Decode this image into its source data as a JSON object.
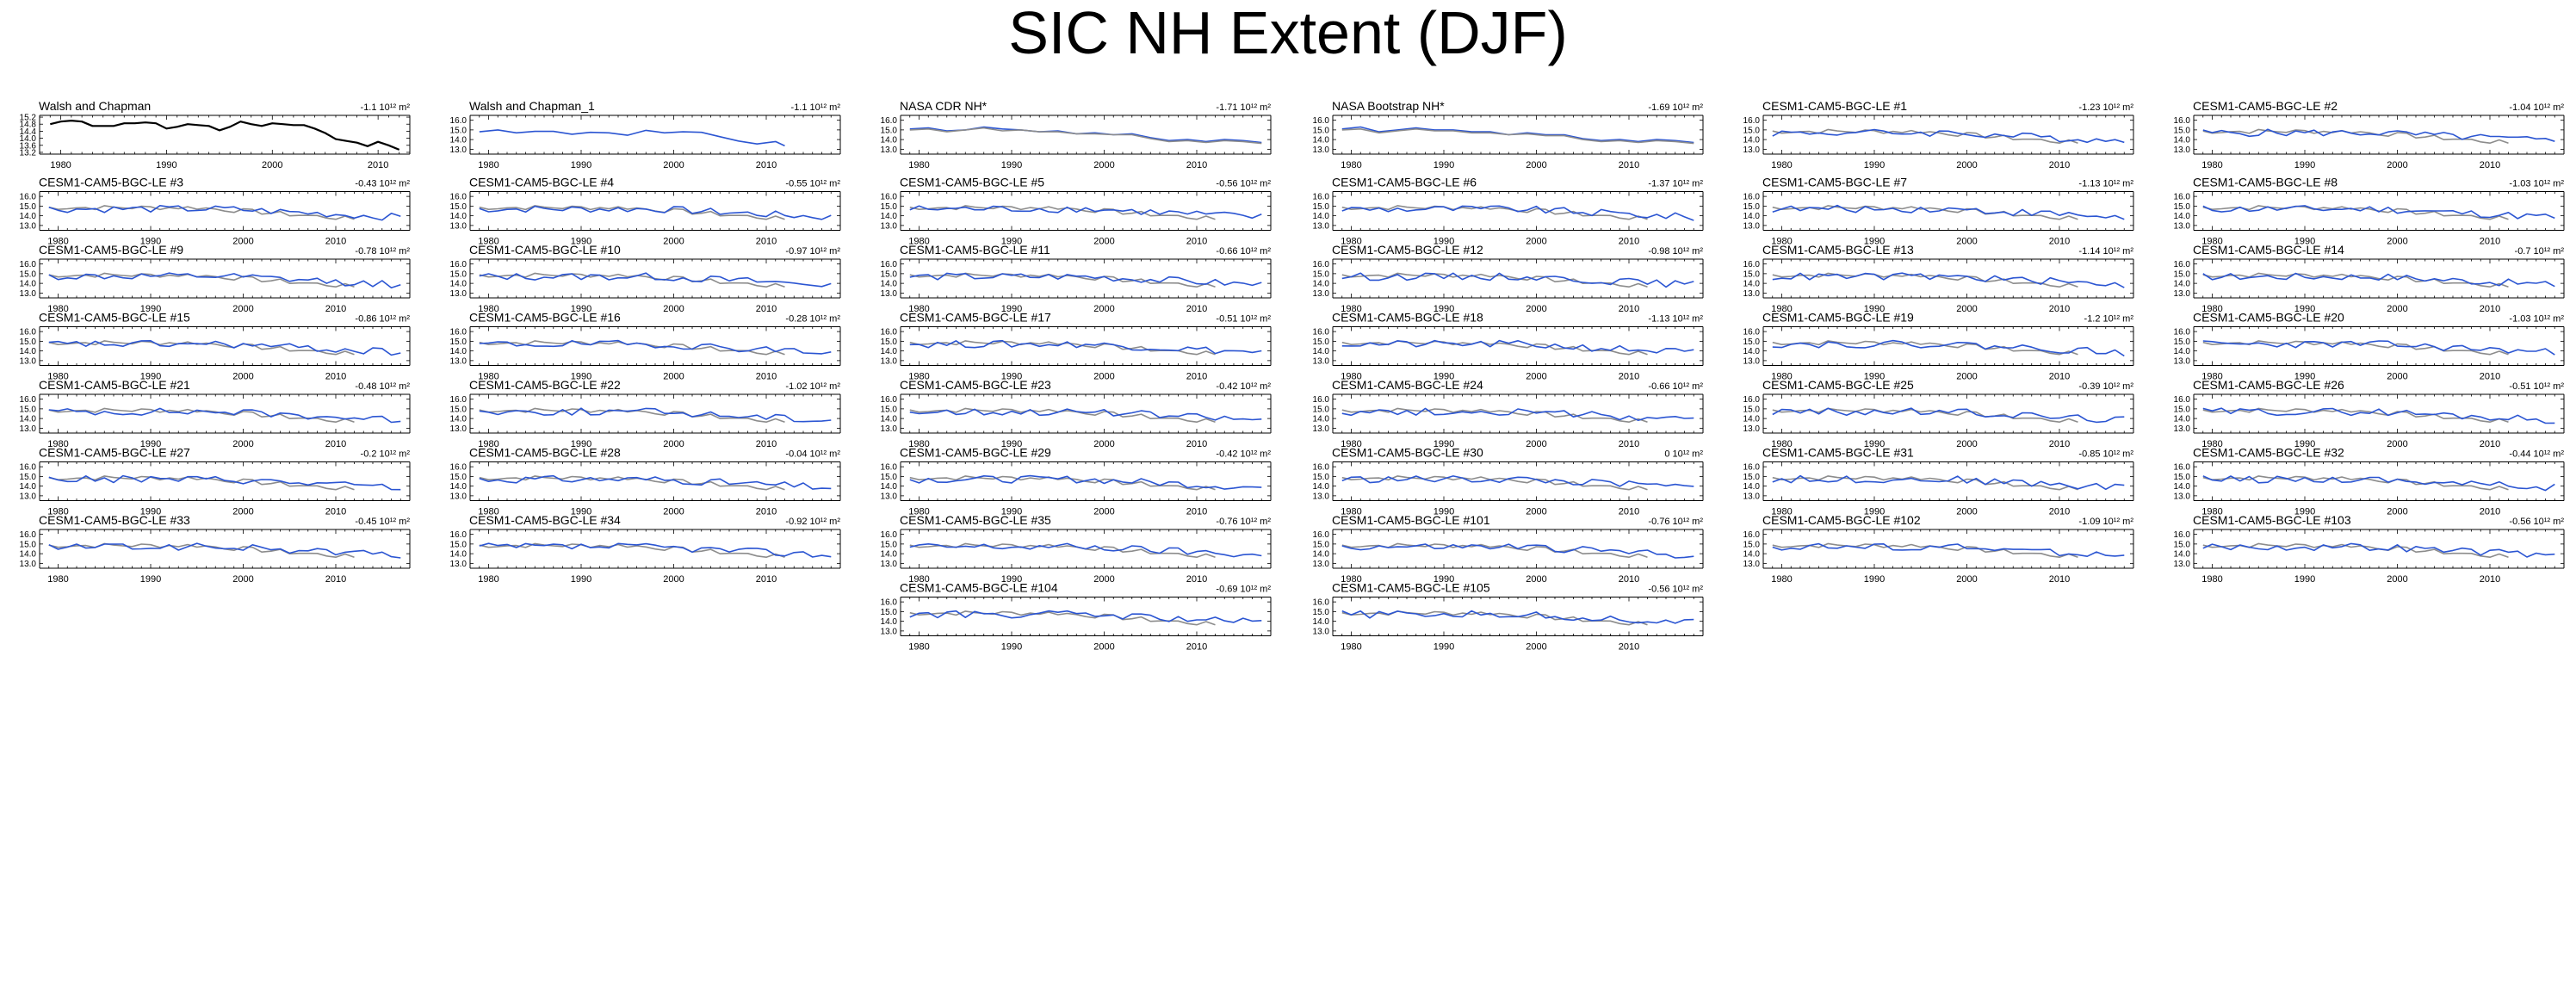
{
  "figure": {
    "title": "SIC NH Extent (DJF)",
    "x_ticks": [
      "1980",
      "1990",
      "2000",
      "2010"
    ],
    "y_ticks_obs": [
      "15.2",
      "14.8",
      "14.4",
      "14.0",
      "13.6",
      "13.2"
    ],
    "y_ticks_default": [
      "16.0",
      "15.0",
      "14.0",
      "13.0"
    ],
    "colors": {
      "model": "#2b55d2",
      "observed": "#8c8c8c",
      "obs_reference": "#000000",
      "axis": "#000000"
    }
  },
  "chart_data": [
    {
      "type": "line",
      "title": "Walsh and Chapman",
      "trend": "-1.1 10¹² m²",
      "xlim": [
        1978,
        2013
      ],
      "ylim": [
        13.1,
        15.3
      ],
      "yticks": [
        15.2,
        14.8,
        14.4,
        14.0,
        13.6,
        13.2
      ],
      "x": [
        1979,
        1980,
        1981,
        1982,
        1983,
        1984,
        1985,
        1986,
        1987,
        1988,
        1989,
        1990,
        1991,
        1992,
        1993,
        1994,
        1995,
        1996,
        1997,
        1998,
        1999,
        2000,
        2001,
        2002,
        2003,
        2004,
        2005,
        2006,
        2007,
        2008,
        2009,
        2010,
        2011,
        2012
      ],
      "series": [
        {
          "name": "Walsh and Chapman",
          "color": "#000000",
          "values": [
            14.8,
            14.95,
            15.0,
            14.95,
            14.7,
            14.7,
            14.7,
            14.85,
            14.85,
            14.9,
            14.85,
            14.55,
            14.65,
            14.8,
            14.75,
            14.7,
            14.45,
            14.65,
            14.95,
            14.8,
            14.7,
            14.85,
            14.8,
            14.75,
            14.75,
            14.55,
            14.3,
            13.95,
            13.85,
            13.75,
            13.55,
            13.8,
            13.6,
            13.35
          ]
        }
      ]
    },
    {
      "type": "line",
      "title": "Walsh and Chapman_1",
      "trend": "-1.1 10¹² m²",
      "xlim": [
        1978,
        2018
      ],
      "ylim": [
        12.5,
        16.5
      ],
      "yticks": [
        16,
        15,
        14,
        13
      ],
      "x": [
        1979,
        1981,
        1983,
        1985,
        1987,
        1989,
        1991,
        1993,
        1995,
        1997,
        1999,
        2001,
        2003,
        2005,
        2007,
        2009,
        2011,
        2012
      ],
      "series": [
        {
          "name": "Walsh and Chapman_1",
          "color": "#2b55d2",
          "values": [
            14.8,
            15.0,
            14.7,
            14.85,
            14.85,
            14.55,
            14.75,
            14.7,
            14.45,
            14.95,
            14.7,
            14.8,
            14.75,
            14.3,
            13.85,
            13.55,
            13.8,
            13.35
          ]
        }
      ]
    },
    {
      "type": "line",
      "title": "NASA CDR NH*",
      "trend": "-1.71 10¹² m²",
      "xlim": [
        1978,
        2018
      ],
      "ylim": [
        12.5,
        16.5
      ],
      "yticks": [
        16,
        15,
        14,
        13
      ],
      "x": [
        1979,
        1981,
        1983,
        1985,
        1987,
        1989,
        1991,
        1993,
        1995,
        1997,
        1999,
        2001,
        2003,
        2005,
        2007,
        2009,
        2011,
        2013,
        2015,
        2017
      ],
      "series": [
        {
          "name": "NASA CDR NH*",
          "color": "#2b55d2",
          "values": [
            15.1,
            15.2,
            14.9,
            15.0,
            15.3,
            15.1,
            15.0,
            14.8,
            14.9,
            14.6,
            14.7,
            14.5,
            14.6,
            14.2,
            13.9,
            14.0,
            13.8,
            14.0,
            13.9,
            13.7
          ]
        },
        {
          "name": "observed",
          "color": "#8c8c8c",
          "values": [
            15.0,
            15.1,
            14.8,
            15.0,
            15.2,
            14.9,
            15.0,
            14.8,
            14.8,
            14.6,
            14.6,
            14.5,
            14.5,
            14.1,
            13.8,
            13.9,
            13.7,
            13.9,
            13.8,
            13.6
          ]
        }
      ]
    },
    {
      "type": "line",
      "title": "NASA Bootstrap NH*",
      "trend": "-1.69 10¹² m²",
      "xlim": [
        1978,
        2018
      ],
      "ylim": [
        12.5,
        16.5
      ],
      "yticks": [
        16,
        15,
        14,
        13
      ],
      "x": [
        1979,
        1981,
        1983,
        1985,
        1987,
        1989,
        1991,
        1993,
        1995,
        1997,
        1999,
        2001,
        2003,
        2005,
        2007,
        2009,
        2011,
        2013,
        2015,
        2017
      ],
      "series": [
        {
          "name": "NASA Bootstrap NH*",
          "color": "#2b55d2",
          "values": [
            15.1,
            15.3,
            14.8,
            15.0,
            15.2,
            15.0,
            15.0,
            14.8,
            14.8,
            14.5,
            14.7,
            14.5,
            14.5,
            14.1,
            13.9,
            14.0,
            13.8,
            14.0,
            13.9,
            13.7
          ]
        },
        {
          "name": "observed",
          "color": "#8c8c8c",
          "values": [
            15.0,
            15.1,
            14.7,
            14.9,
            15.1,
            14.9,
            14.9,
            14.7,
            14.7,
            14.5,
            14.6,
            14.4,
            14.4,
            14.0,
            13.8,
            13.9,
            13.7,
            13.9,
            13.8,
            13.6
          ]
        }
      ]
    },
    {
      "type": "line",
      "title": "CESM1-CAM5-BGC-LE #1",
      "trend": "-1.23 10¹² m²",
      "seed": 1
    },
    {
      "type": "line",
      "title": "CESM1-CAM5-BGC-LE #2",
      "trend": "-1.04 10¹² m²",
      "seed": 2
    },
    {
      "type": "line",
      "title": "CESM1-CAM5-BGC-LE #3",
      "trend": "-0.43 10¹² m²",
      "seed": 3
    },
    {
      "type": "line",
      "title": "CESM1-CAM5-BGC-LE #4",
      "trend": "-0.55 10¹² m²",
      "seed": 4
    },
    {
      "type": "line",
      "title": "CESM1-CAM5-BGC-LE #5",
      "trend": "-0.56 10¹² m²",
      "seed": 5
    },
    {
      "type": "line",
      "title": "CESM1-CAM5-BGC-LE #6",
      "trend": "-1.37 10¹² m²",
      "seed": 6
    },
    {
      "type": "line",
      "title": "CESM1-CAM5-BGC-LE #7",
      "trend": "-1.13 10¹² m²",
      "seed": 7
    },
    {
      "type": "line",
      "title": "CESM1-CAM5-BGC-LE #8",
      "trend": "-1.03 10¹² m²",
      "seed": 8
    },
    {
      "type": "line",
      "title": "CESM1-CAM5-BGC-LE #9",
      "trend": "-0.78 10¹² m²",
      "seed": 9
    },
    {
      "type": "line",
      "title": "CESM1-CAM5-BGC-LE #10",
      "trend": "-0.97 10¹² m²",
      "seed": 10
    },
    {
      "type": "line",
      "title": "CESM1-CAM5-BGC-LE #11",
      "trend": "-0.66 10¹² m²",
      "seed": 11
    },
    {
      "type": "line",
      "title": "CESM1-CAM5-BGC-LE #12",
      "trend": "-0.98 10¹² m²",
      "seed": 12
    },
    {
      "type": "line",
      "title": "CESM1-CAM5-BGC-LE #13",
      "trend": "-1.14 10¹² m²",
      "seed": 13
    },
    {
      "type": "line",
      "title": "CESM1-CAM5-BGC-LE #14",
      "trend": "-0.7 10¹² m²",
      "seed": 14
    },
    {
      "type": "line",
      "title": "CESM1-CAM5-BGC-LE #15",
      "trend": "-0.86 10¹² m²",
      "seed": 15
    },
    {
      "type": "line",
      "title": "CESM1-CAM5-BGC-LE #16",
      "trend": "-0.28 10¹² m²",
      "seed": 16
    },
    {
      "type": "line",
      "title": "CESM1-CAM5-BGC-LE #17",
      "trend": "-0.51 10¹² m²",
      "seed": 17
    },
    {
      "type": "line",
      "title": "CESM1-CAM5-BGC-LE #18",
      "trend": "-1.13 10¹² m²",
      "seed": 18
    },
    {
      "type": "line",
      "title": "CESM1-CAM5-BGC-LE #19",
      "trend": "-1.2 10¹² m²",
      "seed": 19
    },
    {
      "type": "line",
      "title": "CESM1-CAM5-BGC-LE #20",
      "trend": "-1.03 10¹² m²",
      "seed": 20
    },
    {
      "type": "line",
      "title": "CESM1-CAM5-BGC-LE #21",
      "trend": "-0.48 10¹² m²",
      "seed": 21
    },
    {
      "type": "line",
      "title": "CESM1-CAM5-BGC-LE #22",
      "trend": "-1.02 10¹² m²",
      "seed": 22
    },
    {
      "type": "line",
      "title": "CESM1-CAM5-BGC-LE #23",
      "trend": "-0.42 10¹² m²",
      "seed": 23
    },
    {
      "type": "line",
      "title": "CESM1-CAM5-BGC-LE #24",
      "trend": "-0.66 10¹² m²",
      "seed": 24
    },
    {
      "type": "line",
      "title": "CESM1-CAM5-BGC-LE #25",
      "trend": "-0.39 10¹² m²",
      "seed": 25
    },
    {
      "type": "line",
      "title": "CESM1-CAM5-BGC-LE #26",
      "trend": "-0.51 10¹² m²",
      "seed": 26
    },
    {
      "type": "line",
      "title": "CESM1-CAM5-BGC-LE #27",
      "trend": "-0.2 10¹² m²",
      "seed": 27
    },
    {
      "type": "line",
      "title": "CESM1-CAM5-BGC-LE #28",
      "trend": "-0.04 10¹² m²",
      "seed": 28
    },
    {
      "type": "line",
      "title": "CESM1-CAM5-BGC-LE #29",
      "trend": "-0.42 10¹² m²",
      "seed": 29
    },
    {
      "type": "line",
      "title": "CESM1-CAM5-BGC-LE #30",
      "trend": "0 10¹² m²",
      "seed": 30
    },
    {
      "type": "line",
      "title": "CESM1-CAM5-BGC-LE #31",
      "trend": "-0.85 10¹² m²",
      "seed": 31
    },
    {
      "type": "line",
      "title": "CESM1-CAM5-BGC-LE #32",
      "trend": "-0.44 10¹² m²",
      "seed": 32
    },
    {
      "type": "line",
      "title": "CESM1-CAM5-BGC-LE #33",
      "trend": "-0.45 10¹² m²",
      "seed": 33
    },
    {
      "type": "line",
      "title": "CESM1-CAM5-BGC-LE #34",
      "trend": "-0.92 10¹² m²",
      "seed": 34
    },
    {
      "type": "line",
      "title": "CESM1-CAM5-BGC-LE #35",
      "trend": "-0.76 10¹² m²",
      "seed": 35
    },
    {
      "type": "line",
      "title": "CESM1-CAM5-BGC-LE #101",
      "trend": "-0.76 10¹² m²",
      "seed": 101
    },
    {
      "type": "line",
      "title": "CESM1-CAM5-BGC-LE #102",
      "trend": "-1.09 10¹² m²",
      "seed": 102
    },
    {
      "type": "line",
      "title": "CESM1-CAM5-BGC-LE #103",
      "trend": "-0.56 10¹² m²",
      "seed": 103
    },
    {
      "type": "line",
      "title": "CESM1-CAM5-BGC-LE #104",
      "trend": "-0.69 10¹² m²",
      "seed": 104
    },
    {
      "type": "line",
      "title": "CESM1-CAM5-BGC-LE #105",
      "trend": "-0.56 10¹² m²",
      "seed": 105
    }
  ]
}
